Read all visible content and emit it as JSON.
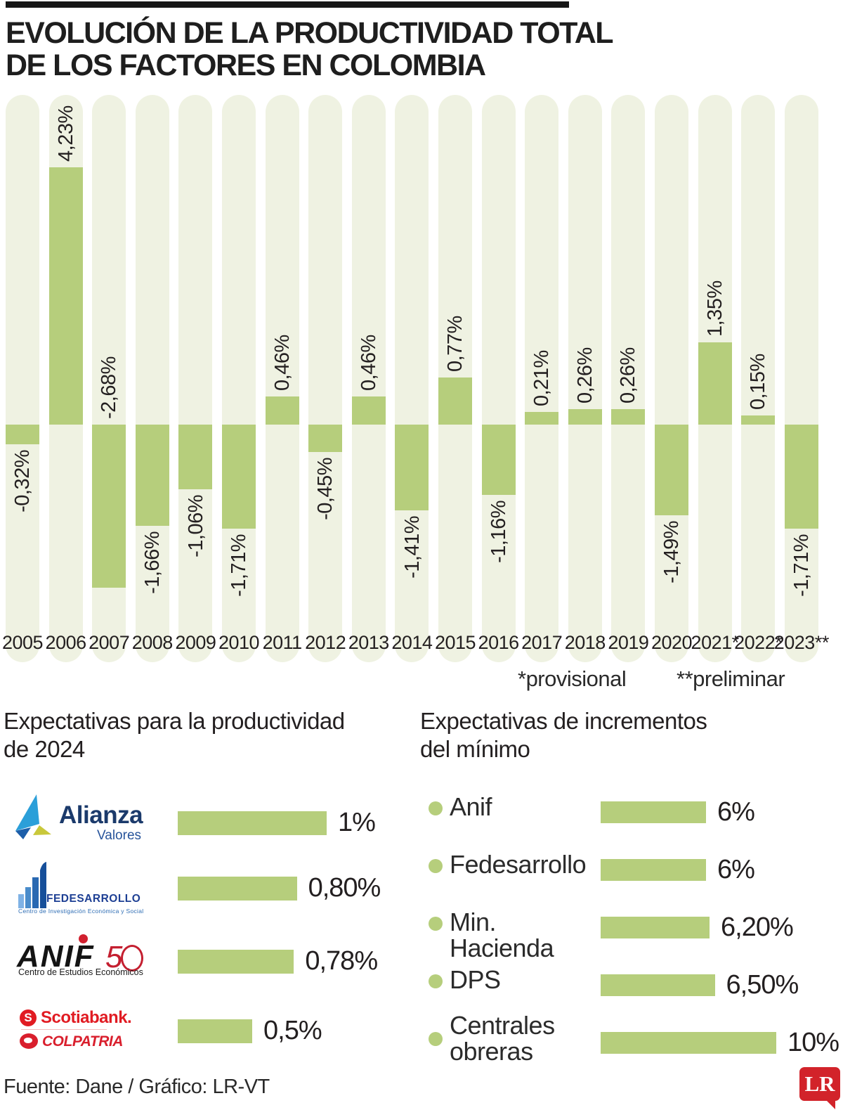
{
  "header": {
    "title_line1": "EVOLUCIÓN DE LA PRODUCTIVIDAD TOTAL",
    "title_line2": "DE LOS FACTORES EN COLOMBIA"
  },
  "chart_data": [
    {
      "id": "tfp-colombia",
      "type": "bar",
      "orientation": "vertical",
      "title": "Evolución de la productividad total de los factores en Colombia",
      "unit": "%",
      "categories": [
        "2005",
        "2006",
        "2007",
        "2008",
        "2009",
        "2010",
        "2011",
        "2012",
        "2013",
        "2014",
        "2015",
        "2016",
        "2017",
        "2018",
        "2019",
        "2020",
        "2021*",
        "2022*",
        "2023**"
      ],
      "values": [
        -0.32,
        4.23,
        -2.68,
        -1.66,
        -1.06,
        -1.71,
        0.46,
        -0.45,
        0.46,
        -1.41,
        0.77,
        -1.16,
        0.21,
        0.26,
        0.26,
        -1.49,
        1.35,
        0.15,
        -1.71
      ],
      "value_labels": [
        "-0,32%",
        "4,23%",
        "-2,68%",
        "-1,66%",
        "-1,06%",
        "-1,71%",
        "0,46%",
        "-0,45%",
        "0,46%",
        "-1,41%",
        "0,77%",
        "-1,16%",
        "0,21%",
        "0,26%",
        "0,26%",
        "-1,49%",
        "1,35%",
        "0,15%",
        "-1,71%"
      ],
      "footnotes": [
        "*provisional",
        "**preliminar"
      ],
      "ylim": [
        -3.9,
        5.4
      ],
      "grid": false,
      "legend": false,
      "bar_color": "#b6ce7c",
      "track_color": "#eff2e2"
    },
    {
      "id": "expectativas-productividad-2024",
      "type": "bar",
      "orientation": "horizontal",
      "title": "Expectativas para la productividad de 2024",
      "unit": "%",
      "categories": [
        "Alianza Valores",
        "Fedesarrollo",
        "Anif",
        "Scotiabank Colpatria"
      ],
      "values": [
        1.0,
        0.8,
        0.78,
        0.5
      ],
      "value_labels": [
        "1%",
        "0,80%",
        "0,78%",
        "0,5%"
      ],
      "bar_color": "#b6ce7c",
      "grid": false,
      "legend": false
    },
    {
      "id": "expectativas-incremento-minimo",
      "type": "bar",
      "orientation": "horizontal",
      "title": "Expectativas de incrementos del mínimo",
      "unit": "%",
      "categories": [
        "Anif",
        "Fedesarrollo",
        "Min. Hacienda",
        "DPS",
        "Centrales obreras"
      ],
      "values": [
        6,
        6,
        6.2,
        6.5,
        10
      ],
      "value_labels": [
        "6%",
        "6%",
        "6,20%",
        "6,50%",
        "10%"
      ],
      "bar_color": "#b6ce7c",
      "grid": false,
      "legend": false
    }
  ],
  "sections": {
    "left": {
      "heading_line1": "Expectativas para la productividad",
      "heading_line2": "de 2024"
    },
    "right": {
      "heading_line1": "Expectativas de incrementos",
      "heading_line2": "del mínimo"
    }
  },
  "logos": {
    "alianza": {
      "name": "Alianza",
      "sub": "Valores"
    },
    "fedesarrollo": {
      "name": "FEDESARROLLO",
      "sub": "Centro de Investigación Económica y Social"
    },
    "anif": {
      "name": "ANIF",
      "badge_digit": "5",
      "sub": "Centro de Estudios Económicos"
    },
    "scotiabank": {
      "name": "Scotiabank.",
      "icon_letter": "S",
      "partner": "COLPATRIA"
    }
  },
  "footer": {
    "source": "Fuente: Dane / Gráfico: LR-VT",
    "logo_text": "LR"
  },
  "colors": {
    "bar_green": "#b6ce7c",
    "track": "#eff2e2",
    "text": "#231f20",
    "lr_red": "#d2232a",
    "alianza_navy": "#1b3a6b",
    "alianza_lightblue": "#2b9fd9",
    "alianza_blue": "#1c5ea9",
    "alianza_yellow": "#c9c83b",
    "fedesarrollo_blue": "#1d3f94",
    "anif_red": "#c41f30",
    "scotiabank_red": "#e11b22"
  }
}
